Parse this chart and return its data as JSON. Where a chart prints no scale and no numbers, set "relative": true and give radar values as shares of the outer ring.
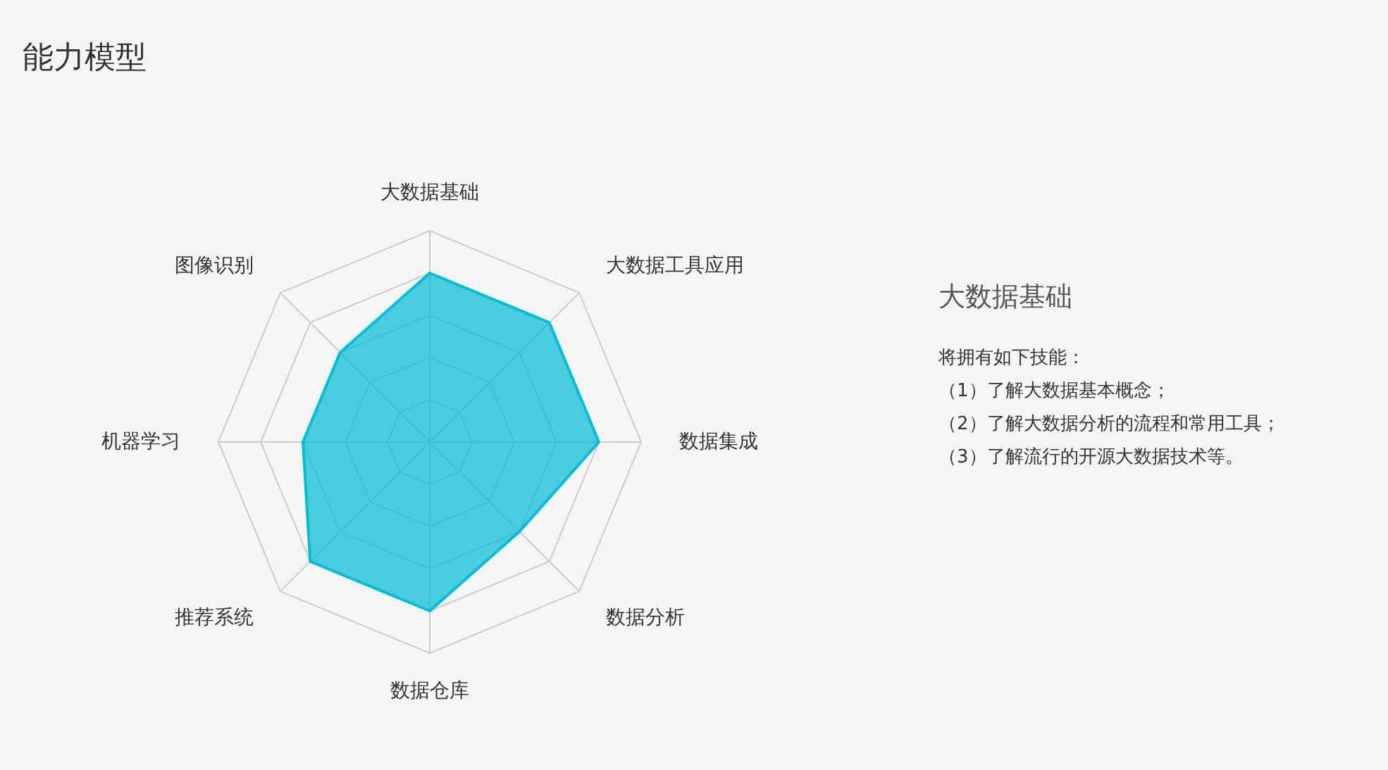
{
  "chart_data": [
    {
      "type": "radar",
      "title": "能力模型",
      "categories": [
        "大数据基础",
        "大数据工具应用",
        "数据集成",
        "数据分析",
        "数据仓库",
        "推荐系统",
        "机器学习",
        "图像识别"
      ],
      "relative": true,
      "grid": true,
      "series": [
        {
          "color": "#00bcd4",
          "values": [
            0.8,
            0.8,
            0.8,
            0.6,
            0.8,
            0.8,
            0.6,
            0.6
          ]
        }
      ]
    },
    {
      "type": "other",
      "title": "大数据基础",
      "annotations": [
        "将拥有如下技能：",
        "（1）了解大数据基本概念；",
        "（2）了解大数据分析的流程和常用工具；",
        "（3）了解流行的开源大数据技术等。"
      ]
    }
  ]
}
